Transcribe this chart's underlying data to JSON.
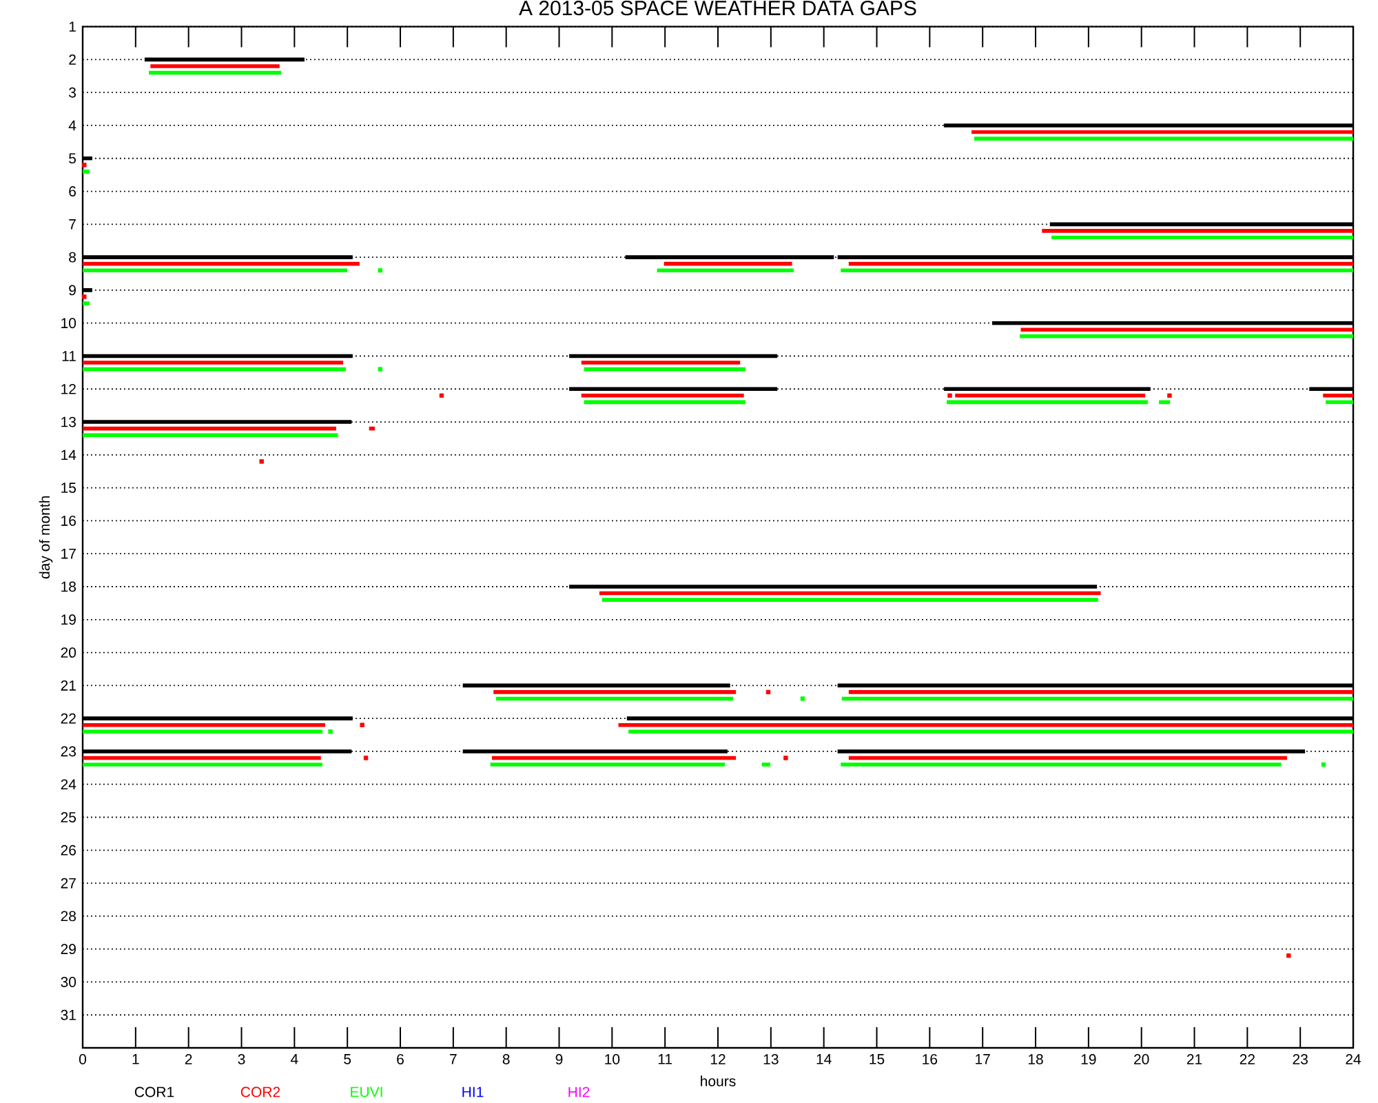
{
  "chart_data": {
    "type": "line",
    "title": "A  2013-05 SPACE WEATHER DATA GAPS",
    "xlabel": "hours",
    "ylabel": "day of month",
    "xlim": [
      0,
      24
    ],
    "xticks": [
      0,
      1,
      2,
      3,
      4,
      5,
      6,
      7,
      8,
      9,
      10,
      11,
      12,
      13,
      14,
      15,
      16,
      17,
      18,
      19,
      20,
      21,
      22,
      23,
      24
    ],
    "ylim": [
      32,
      1
    ],
    "yticks": [
      1,
      2,
      3,
      4,
      5,
      6,
      7,
      8,
      9,
      10,
      11,
      12,
      13,
      14,
      15,
      16,
      17,
      18,
      19,
      20,
      21,
      22,
      23,
      24,
      25,
      26,
      27,
      28,
      29,
      30,
      31
    ],
    "grid": "y",
    "legend": "bottom left",
    "marker": "none",
    "line_style": "solid",
    "series": [
      {
        "name": "COR1",
        "color": "#000000",
        "x": [
          1.17,
          4.19
        ],
        "values": [
          2,
          2
        ]
      },
      {
        "color": "#000000",
        "x": [
          16.27,
          24
        ],
        "values": [
          4,
          4
        ]
      },
      {
        "color": "#000000",
        "x": [
          0,
          0.18
        ],
        "values": [
          5,
          5
        ]
      },
      {
        "color": "#000000",
        "x": [
          18.27,
          24
        ],
        "values": [
          7,
          7
        ]
      },
      {
        "color": "#000000",
        "x": [
          0,
          5.1
        ],
        "values": [
          8,
          8
        ]
      },
      {
        "color": "#000000",
        "x": [
          10.25,
          14.19
        ],
        "values": [
          8,
          8
        ]
      },
      {
        "color": "#000000",
        "x": [
          14.26,
          24
        ],
        "values": [
          8,
          8
        ]
      },
      {
        "color": "#000000",
        "x": [
          0,
          0.18
        ],
        "values": [
          9,
          9
        ]
      },
      {
        "color": "#000000",
        "x": [
          17.18,
          24
        ],
        "values": [
          10,
          10
        ]
      },
      {
        "color": "#000000",
        "x": [
          0,
          5.1
        ],
        "values": [
          11,
          11
        ]
      },
      {
        "color": "#000000",
        "x": [
          9.19,
          13.12
        ],
        "values": [
          11,
          11
        ]
      },
      {
        "color": "#000000",
        "x": [
          9.19,
          13.12
        ],
        "values": [
          12,
          12
        ]
      },
      {
        "color": "#000000",
        "x": [
          16.27,
          20.17
        ],
        "values": [
          12,
          12
        ]
      },
      {
        "color": "#000000",
        "x": [
          23.17,
          24
        ],
        "values": [
          12,
          12
        ]
      },
      {
        "color": "#000000",
        "x": [
          0,
          5.08
        ],
        "values": [
          13,
          13
        ]
      },
      {
        "color": "#000000",
        "x": [
          9.19,
          19.16
        ],
        "values": [
          18,
          18
        ]
      },
      {
        "color": "#000000",
        "x": [
          7.18,
          12.23
        ],
        "values": [
          21,
          21
        ]
      },
      {
        "color": "#000000",
        "x": [
          14.26,
          24
        ],
        "values": [
          21,
          21
        ]
      },
      {
        "color": "#000000",
        "x": [
          0,
          5.1
        ],
        "values": [
          22,
          22
        ]
      },
      {
        "color": "#000000",
        "x": [
          10.28,
          24
        ],
        "values": [
          22,
          22
        ]
      },
      {
        "color": "#000000",
        "x": [
          0,
          5.08
        ],
        "values": [
          23,
          23
        ]
      },
      {
        "color": "#000000",
        "x": [
          7.18,
          12.18
        ],
        "values": [
          23,
          23
        ]
      },
      {
        "color": "#000000",
        "x": [
          14.26,
          23.09
        ],
        "values": [
          23,
          23
        ]
      },
      {
        "name": "COR2",
        "color": "#ff0000",
        "x": [
          1.28,
          3.72
        ],
        "values": [
          2.2,
          2.2
        ]
      },
      {
        "color": "#ff0000",
        "x": [
          16.79,
          24
        ],
        "values": [
          4.2,
          4.2
        ]
      },
      {
        "color": "#ff0000",
        "x": [
          18.12,
          24
        ],
        "values": [
          7.2,
          7.2
        ]
      },
      {
        "color": "#ff0000",
        "x": [
          0,
          5.23
        ],
        "values": [
          8.2,
          8.2
        ]
      },
      {
        "color": "#ff0000",
        "x": [
          10.98,
          13.4
        ],
        "values": [
          8.2,
          8.2
        ]
      },
      {
        "color": "#ff0000",
        "x": [
          14.47,
          24
        ],
        "values": [
          8.2,
          8.2
        ]
      },
      {
        "color": "#ff0000",
        "x": [
          17.72,
          24
        ],
        "values": [
          10.2,
          10.2
        ]
      },
      {
        "color": "#ff0000",
        "x": [
          0,
          4.92
        ],
        "values": [
          11.2,
          11.2
        ]
      },
      {
        "color": "#ff0000",
        "x": [
          9.42,
          12.42
        ],
        "values": [
          11.2,
          11.2
        ]
      },
      {
        "color": "#ff0000",
        "x": [
          9.42,
          12.49
        ],
        "values": [
          12.2,
          12.2
        ]
      },
      {
        "color": "#ff0000",
        "x": [
          16.48,
          20.07
        ],
        "values": [
          12.2,
          12.2
        ]
      },
      {
        "color": "#ff0000",
        "x": [
          23.43,
          24
        ],
        "values": [
          12.2,
          12.2
        ]
      },
      {
        "color": "#ff0000",
        "x": [
          0,
          4.79
        ],
        "values": [
          13.2,
          13.2
        ]
      },
      {
        "color": "#ff0000",
        "x": [
          5.41,
          5.52
        ],
        "values": [
          13.2,
          13.2
        ]
      },
      {
        "color": "#ff0000",
        "x": [
          9.76,
          19.23
        ],
        "values": [
          18.2,
          18.2
        ]
      },
      {
        "color": "#ff0000",
        "x": [
          7.76,
          12.34
        ],
        "values": [
          21.2,
          21.2
        ]
      },
      {
        "color": "#ff0000",
        "x": [
          14.47,
          24
        ],
        "values": [
          21.2,
          21.2
        ]
      },
      {
        "color": "#ff0000",
        "x": [
          0,
          4.58
        ],
        "values": [
          22.2,
          22.2
        ]
      },
      {
        "color": "#ff0000",
        "x": [
          10.12,
          24
        ],
        "values": [
          22.2,
          22.2
        ]
      },
      {
        "color": "#ff0000",
        "x": [
          0,
          4.5
        ],
        "values": [
          23.2,
          23.2
        ]
      },
      {
        "color": "#ff0000",
        "x": [
          7.73,
          12.34
        ],
        "values": [
          23.2,
          23.2
        ]
      },
      {
        "color": "#ff0000",
        "x": [
          14.47,
          22.75
        ],
        "values": [
          23.2,
          23.2
        ]
      },
      {
        "type": "scatter",
        "marker": "square",
        "color": "#ff0000",
        "x": [
          0.03,
          0.03,
          6.78,
          16.38,
          20.53,
          3.38,
          12.95,
          5.28,
          5.35,
          13.28,
          22.78
        ],
        "values": [
          5.2,
          9.2,
          12.2,
          12.2,
          12.2,
          14.2,
          21.2,
          22.2,
          23.2,
          23.2,
          29.2
        ]
      },
      {
        "name": "EUVI",
        "color": "#00ff00",
        "x": [
          1.25,
          3.75
        ],
        "values": [
          2.4,
          2.4
        ]
      },
      {
        "color": "#00ff00",
        "x": [
          16.84,
          24
        ],
        "values": [
          4.4,
          4.4
        ]
      },
      {
        "color": "#00ff00",
        "x": [
          0,
          0.13
        ],
        "values": [
          5.4,
          5.4
        ]
      },
      {
        "color": "#00ff00",
        "x": [
          18.3,
          24
        ],
        "values": [
          7.4,
          7.4
        ]
      },
      {
        "color": "#00ff00",
        "x": [
          0,
          5.0
        ],
        "values": [
          8.4,
          8.4
        ]
      },
      {
        "color": "#00ff00",
        "x": [
          10.85,
          13.43
        ],
        "values": [
          8.4,
          8.4
        ]
      },
      {
        "color": "#00ff00",
        "x": [
          14.32,
          24
        ],
        "values": [
          8.4,
          8.4
        ]
      },
      {
        "color": "#00ff00",
        "x": [
          0,
          0.13
        ],
        "values": [
          9.4,
          9.4
        ]
      },
      {
        "color": "#00ff00",
        "x": [
          17.7,
          24
        ],
        "values": [
          10.4,
          10.4
        ]
      },
      {
        "color": "#00ff00",
        "x": [
          0,
          4.97
        ],
        "values": [
          11.4,
          11.4
        ]
      },
      {
        "color": "#00ff00",
        "x": [
          9.47,
          12.52
        ],
        "values": [
          11.4,
          11.4
        ]
      },
      {
        "color": "#00ff00",
        "x": [
          9.47,
          12.52
        ],
        "values": [
          12.4,
          12.4
        ]
      },
      {
        "color": "#00ff00",
        "x": [
          16.32,
          20.12
        ],
        "values": [
          12.4,
          12.4
        ]
      },
      {
        "color": "#00ff00",
        "x": [
          20.33,
          20.54
        ],
        "values": [
          12.4,
          12.4
        ]
      },
      {
        "color": "#00ff00",
        "x": [
          23.48,
          24
        ],
        "values": [
          12.4,
          12.4
        ]
      },
      {
        "color": "#00ff00",
        "x": [
          0,
          4.82
        ],
        "values": [
          13.4,
          13.4
        ]
      },
      {
        "color": "#00ff00",
        "x": [
          9.81,
          19.18
        ],
        "values": [
          18.4,
          18.4
        ]
      },
      {
        "color": "#00ff00",
        "x": [
          7.81,
          12.29
        ],
        "values": [
          21.4,
          21.4
        ]
      },
      {
        "color": "#00ff00",
        "x": [
          14.34,
          24
        ],
        "values": [
          21.4,
          21.4
        ]
      },
      {
        "color": "#00ff00",
        "x": [
          0,
          4.53
        ],
        "values": [
          22.4,
          22.4
        ]
      },
      {
        "color": "#00ff00",
        "x": [
          10.31,
          24
        ],
        "values": [
          22.4,
          22.4
        ]
      },
      {
        "color": "#00ff00",
        "x": [
          0,
          4.53
        ],
        "values": [
          23.4,
          23.4
        ]
      },
      {
        "color": "#00ff00",
        "x": [
          7.7,
          12.13
        ],
        "values": [
          23.4,
          23.4
        ]
      },
      {
        "color": "#00ff00",
        "x": [
          12.83,
          12.99
        ],
        "values": [
          23.4,
          23.4
        ]
      },
      {
        "color": "#00ff00",
        "x": [
          14.32,
          22.64
        ],
        "values": [
          23.4,
          23.4
        ]
      },
      {
        "type": "scatter",
        "marker": "square",
        "color": "#00ff00",
        "x": [
          5.62,
          5.62,
          13.6,
          4.68,
          23.44
        ],
        "values": [
          8.4,
          11.4,
          21.4,
          22.4,
          23.4
        ]
      },
      {
        "name": "HI1",
        "color": "#0000ff"
      },
      {
        "name": "HI2",
        "color": "#ff00ff"
      }
    ]
  }
}
